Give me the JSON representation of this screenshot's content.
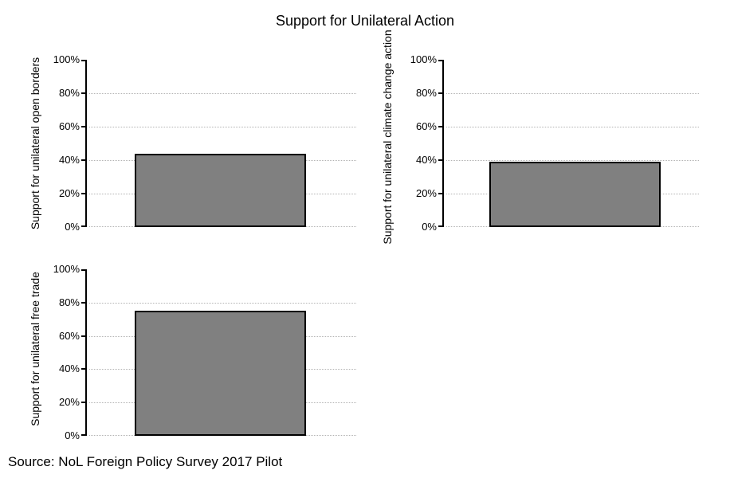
{
  "title": "Support for Unilateral Action",
  "source_caption": "Source: NoL Foreign Policy Survey 2017 Pilot",
  "colors": {
    "background": "#ffffff",
    "text": "#000000",
    "bar_fill": "#808080",
    "bar_border": "#000000",
    "axis": "#000000",
    "gridline": "#b3b3b3"
  },
  "chart_data": [
    {
      "type": "bar",
      "panel": "top-left",
      "title": "",
      "ylabel": "Support for unilateral open borders",
      "xlabel": "",
      "categories": [
        ""
      ],
      "values": [
        44
      ],
      "ylim": [
        0,
        100
      ],
      "tick_values": [
        0,
        20,
        40,
        60,
        80,
        100
      ],
      "tick_labels": [
        "0%",
        "20%",
        "40%",
        "60%",
        "80%",
        "100%"
      ],
      "grid": "horizontal dotted lines at 0%, 20%, 40%, 60%, 80%",
      "legend": "none"
    },
    {
      "type": "bar",
      "panel": "top-right",
      "title": "",
      "ylabel": "Support for unilateral climate change action",
      "xlabel": "",
      "categories": [
        ""
      ],
      "values": [
        39
      ],
      "ylim": [
        0,
        100
      ],
      "tick_values": [
        0,
        20,
        40,
        60,
        80,
        100
      ],
      "tick_labels": [
        "0%",
        "20%",
        "40%",
        "60%",
        "80%",
        "100%"
      ],
      "grid": "horizontal dotted lines at 0%, 20%, 40%, 60%, 80%",
      "legend": "none"
    },
    {
      "type": "bar",
      "panel": "bottom-left",
      "title": "",
      "ylabel": "Support for unilateral free trade",
      "xlabel": "",
      "categories": [
        ""
      ],
      "values": [
        75
      ],
      "ylim": [
        0,
        100
      ],
      "tick_values": [
        0,
        20,
        40,
        60,
        80,
        100
      ],
      "tick_labels": [
        "0%",
        "20%",
        "40%",
        "60%",
        "80%",
        "100%"
      ],
      "grid": "horizontal dotted lines at 0%, 20%, 40%, 60%, 80%",
      "legend": "none"
    }
  ]
}
